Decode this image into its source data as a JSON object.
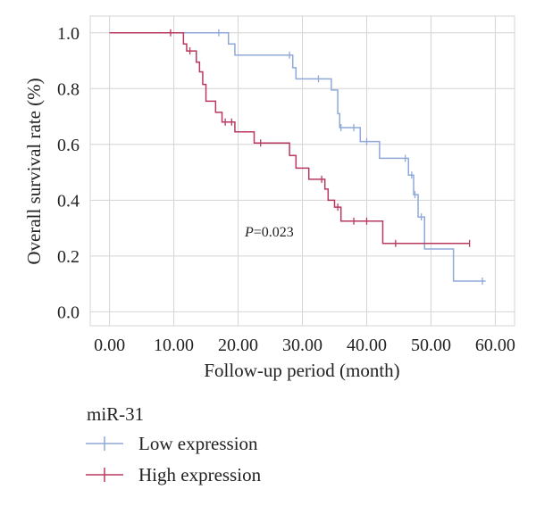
{
  "chart_data": {
    "type": "line",
    "subtype": "kaplan-meier-step",
    "xlabel": "Follow-up period (month)",
    "ylabel": "Overall survival rate (%)",
    "xlim": [
      -3,
      63
    ],
    "ylim": [
      -0.05,
      1.06
    ],
    "xticks": [
      0,
      10,
      20,
      30,
      40,
      50,
      60
    ],
    "xtick_labels": [
      "0.00",
      "10.00",
      "20.00",
      "30.00",
      "40.00",
      "50.00",
      "60.00"
    ],
    "yticks": [
      0,
      0.2,
      0.4,
      0.6,
      0.8,
      1.0
    ],
    "ytick_labels": [
      "0.0",
      "0.2",
      "0.4",
      "0.6",
      "0.8",
      "1.0"
    ],
    "grid": true,
    "annotation": {
      "text": "=0.023",
      "prefix": "P",
      "x": 30,
      "y": 0.28
    },
    "legend": {
      "title": "miR-31",
      "placement": "bottom-left",
      "entries": [
        "Low expression",
        "High expression"
      ]
    },
    "series": [
      {
        "name": "Low expression",
        "color": "#8fa9d8",
        "steps": [
          [
            0,
            1.0
          ],
          [
            18.5,
            0.96
          ],
          [
            19.5,
            0.92
          ],
          [
            28.5,
            0.875
          ],
          [
            29,
            0.835
          ],
          [
            34.5,
            0.795
          ],
          [
            35.5,
            0.71
          ],
          [
            35.8,
            0.66
          ],
          [
            39,
            0.61
          ],
          [
            42,
            0.55
          ],
          [
            46.5,
            0.49
          ],
          [
            47.3,
            0.42
          ],
          [
            48,
            0.34
          ],
          [
            49,
            0.225
          ],
          [
            53.5,
            0.11
          ],
          [
            58.5,
            0.11
          ]
        ],
        "censored": [
          [
            17,
            1.0
          ],
          [
            28,
            0.92
          ],
          [
            32.5,
            0.835
          ],
          [
            36,
            0.66
          ],
          [
            38,
            0.66
          ],
          [
            40,
            0.61
          ],
          [
            46,
            0.55
          ],
          [
            47,
            0.49
          ],
          [
            47.5,
            0.42
          ],
          [
            48.5,
            0.34
          ],
          [
            58,
            0.11
          ]
        ]
      },
      {
        "name": "High expression",
        "color": "#b8395e",
        "steps": [
          [
            0,
            1.0
          ],
          [
            11.5,
            0.96
          ],
          [
            12,
            0.935
          ],
          [
            13.5,
            0.895
          ],
          [
            14,
            0.86
          ],
          [
            14.5,
            0.815
          ],
          [
            15,
            0.755
          ],
          [
            16.5,
            0.715
          ],
          [
            17.5,
            0.68
          ],
          [
            19.5,
            0.645
          ],
          [
            22.5,
            0.605
          ],
          [
            28,
            0.56
          ],
          [
            29,
            0.515
          ],
          [
            31,
            0.475
          ],
          [
            33.5,
            0.44
          ],
          [
            34,
            0.4
          ],
          [
            35,
            0.375
          ],
          [
            36,
            0.325
          ],
          [
            42.5,
            0.245
          ],
          [
            56,
            0.245
          ]
        ],
        "censored": [
          [
            9.5,
            1.0
          ],
          [
            12.5,
            0.935
          ],
          [
            18,
            0.68
          ],
          [
            19,
            0.68
          ],
          [
            23.5,
            0.605
          ],
          [
            33,
            0.475
          ],
          [
            35.5,
            0.375
          ],
          [
            38,
            0.325
          ],
          [
            40,
            0.325
          ],
          [
            44.5,
            0.245
          ],
          [
            56,
            0.245
          ]
        ]
      }
    ]
  }
}
